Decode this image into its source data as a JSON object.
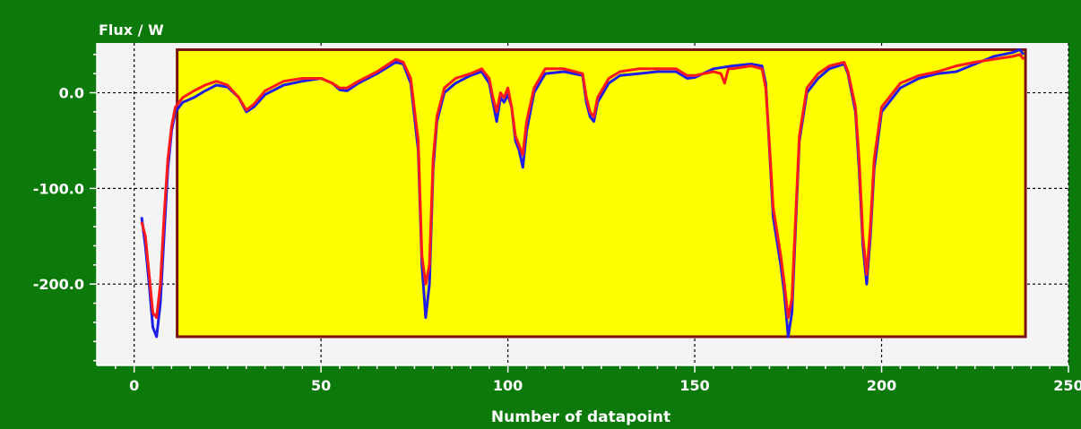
{
  "colors": {
    "background": "#0b7a0b",
    "plot_area": "#f4f4f4",
    "highlight_fill": "#ffff00",
    "highlight_border": "#7a1010",
    "series_blue": "#1e1ee8",
    "series_red": "#ff1a1a",
    "grid": "#000000",
    "text": "#ffffff"
  },
  "chart_data": {
    "type": "line",
    "title": "",
    "ylabel": "Flux / W",
    "xlabel": "Number of datapoint",
    "xlim": [
      -10,
      250
    ],
    "ylim": [
      -285,
      52
    ],
    "x_ticks": [
      0,
      50,
      100,
      150,
      200,
      250
    ],
    "x_tick_labels": [
      "0",
      "50",
      "100",
      "150",
      "200",
      "250"
    ],
    "y_ticks": [
      0,
      -100,
      -200
    ],
    "y_tick_labels": [
      "0.0",
      "-100.0",
      "-200.0"
    ],
    "grid": true,
    "highlight_region": {
      "x": [
        11.5,
        238.5
      ],
      "y": [
        -255,
        45
      ]
    },
    "series": [
      {
        "color": "#1e1ee8",
        "points": [
          [
            2,
            -130
          ],
          [
            3,
            -160
          ],
          [
            4,
            -200
          ],
          [
            5,
            -245
          ],
          [
            6,
            -255
          ],
          [
            7,
            -220
          ],
          [
            8,
            -150
          ],
          [
            9,
            -80
          ],
          [
            10,
            -40
          ],
          [
            11,
            -20
          ],
          [
            13,
            -10
          ],
          [
            16,
            -5
          ],
          [
            19,
            2
          ],
          [
            22,
            8
          ],
          [
            25,
            6
          ],
          [
            28,
            -5
          ],
          [
            30,
            -20
          ],
          [
            32,
            -15
          ],
          [
            35,
            -2
          ],
          [
            40,
            8
          ],
          [
            45,
            12
          ],
          [
            50,
            15
          ],
          [
            53,
            10
          ],
          [
            55,
            3
          ],
          [
            57,
            2
          ],
          [
            60,
            10
          ],
          [
            65,
            20
          ],
          [
            70,
            32
          ],
          [
            72,
            30
          ],
          [
            74,
            10
          ],
          [
            76,
            -60
          ],
          [
            77,
            -180
          ],
          [
            78,
            -235
          ],
          [
            79,
            -200
          ],
          [
            80,
            -80
          ],
          [
            81,
            -30
          ],
          [
            83,
            0
          ],
          [
            86,
            10
          ],
          [
            90,
            18
          ],
          [
            93,
            22
          ],
          [
            95,
            10
          ],
          [
            96,
            -10
          ],
          [
            97,
            -30
          ],
          [
            98,
            -5
          ],
          [
            99,
            -10
          ],
          [
            100,
            -2
          ],
          [
            101,
            -15
          ],
          [
            102,
            -50
          ],
          [
            103,
            -60
          ],
          [
            104,
            -78
          ],
          [
            105,
            -40
          ],
          [
            107,
            0
          ],
          [
            110,
            20
          ],
          [
            115,
            22
          ],
          [
            120,
            18
          ],
          [
            121,
            -10
          ],
          [
            122,
            -25
          ],
          [
            123,
            -30
          ],
          [
            124,
            -10
          ],
          [
            127,
            10
          ],
          [
            130,
            18
          ],
          [
            135,
            20
          ],
          [
            140,
            22
          ],
          [
            145,
            22
          ],
          [
            148,
            15
          ],
          [
            150,
            16
          ],
          [
            155,
            25
          ],
          [
            160,
            28
          ],
          [
            165,
            30
          ],
          [
            168,
            28
          ],
          [
            169,
            10
          ],
          [
            170,
            -60
          ],
          [
            171,
            -130
          ],
          [
            173,
            -180
          ],
          [
            174,
            -210
          ],
          [
            175,
            -255
          ],
          [
            176,
            -230
          ],
          [
            177,
            -140
          ],
          [
            178,
            -50
          ],
          [
            180,
            0
          ],
          [
            183,
            15
          ],
          [
            186,
            25
          ],
          [
            190,
            30
          ],
          [
            191,
            20
          ],
          [
            193,
            -20
          ],
          [
            194,
            -80
          ],
          [
            195,
            -160
          ],
          [
            196,
            -200
          ],
          [
            197,
            -150
          ],
          [
            198,
            -80
          ],
          [
            200,
            -20
          ],
          [
            205,
            5
          ],
          [
            210,
            15
          ],
          [
            215,
            20
          ],
          [
            220,
            22
          ],
          [
            225,
            30
          ],
          [
            230,
            38
          ],
          [
            235,
            42
          ],
          [
            237,
            45
          ],
          [
            238,
            40
          ]
        ]
      },
      {
        "color": "#ff1a1a",
        "points": [
          [
            2,
            -135
          ],
          [
            3,
            -150
          ],
          [
            4,
            -190
          ],
          [
            5,
            -230
          ],
          [
            6,
            -235
          ],
          [
            7,
            -200
          ],
          [
            8,
            -130
          ],
          [
            9,
            -70
          ],
          [
            10,
            -35
          ],
          [
            11,
            -15
          ],
          [
            13,
            -5
          ],
          [
            16,
            2
          ],
          [
            19,
            8
          ],
          [
            22,
            12
          ],
          [
            25,
            8
          ],
          [
            28,
            -5
          ],
          [
            30,
            -18
          ],
          [
            32,
            -12
          ],
          [
            35,
            2
          ],
          [
            40,
            12
          ],
          [
            45,
            15
          ],
          [
            50,
            15
          ],
          [
            53,
            10
          ],
          [
            55,
            5
          ],
          [
            57,
            5
          ],
          [
            60,
            12
          ],
          [
            65,
            22
          ],
          [
            70,
            35
          ],
          [
            72,
            32
          ],
          [
            74,
            15
          ],
          [
            76,
            -50
          ],
          [
            77,
            -170
          ],
          [
            78,
            -200
          ],
          [
            79,
            -180
          ],
          [
            80,
            -70
          ],
          [
            81,
            -25
          ],
          [
            83,
            5
          ],
          [
            86,
            15
          ],
          [
            90,
            20
          ],
          [
            93,
            25
          ],
          [
            95,
            15
          ],
          [
            96,
            -5
          ],
          [
            97,
            -20
          ],
          [
            98,
            0
          ],
          [
            99,
            -5
          ],
          [
            100,
            5
          ],
          [
            101,
            -15
          ],
          [
            102,
            -45
          ],
          [
            103,
            -55
          ],
          [
            104,
            -65
          ],
          [
            105,
            -30
          ],
          [
            107,
            5
          ],
          [
            110,
            25
          ],
          [
            115,
            25
          ],
          [
            120,
            20
          ],
          [
            121,
            -5
          ],
          [
            122,
            -20
          ],
          [
            123,
            -25
          ],
          [
            124,
            -5
          ],
          [
            127,
            15
          ],
          [
            130,
            22
          ],
          [
            135,
            25
          ],
          [
            140,
            25
          ],
          [
            145,
            25
          ],
          [
            148,
            18
          ],
          [
            150,
            18
          ],
          [
            155,
            22
          ],
          [
            157,
            20
          ],
          [
            158,
            10
          ],
          [
            159,
            25
          ],
          [
            160,
            25
          ],
          [
            165,
            28
          ],
          [
            168,
            25
          ],
          [
            169,
            5
          ],
          [
            170,
            -55
          ],
          [
            171,
            -120
          ],
          [
            173,
            -170
          ],
          [
            174,
            -200
          ],
          [
            175,
            -235
          ],
          [
            176,
            -215
          ],
          [
            177,
            -130
          ],
          [
            178,
            -45
          ],
          [
            180,
            5
          ],
          [
            183,
            20
          ],
          [
            186,
            28
          ],
          [
            190,
            32
          ],
          [
            191,
            22
          ],
          [
            193,
            -15
          ],
          [
            194,
            -70
          ],
          [
            195,
            -150
          ],
          [
            196,
            -190
          ],
          [
            197,
            -140
          ],
          [
            198,
            -70
          ],
          [
            200,
            -15
          ],
          [
            205,
            10
          ],
          [
            210,
            18
          ],
          [
            215,
            22
          ],
          [
            220,
            28
          ],
          [
            225,
            32
          ],
          [
            230,
            35
          ],
          [
            235,
            38
          ],
          [
            237,
            40
          ],
          [
            238,
            35
          ]
        ]
      }
    ]
  }
}
